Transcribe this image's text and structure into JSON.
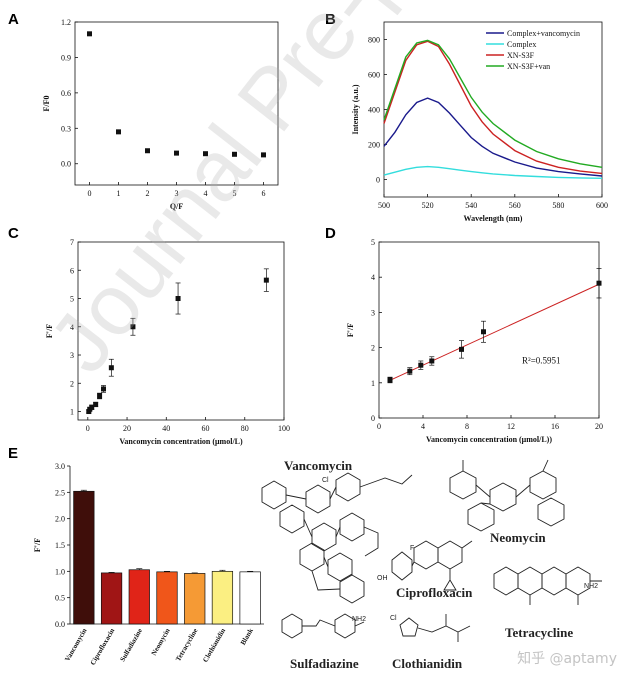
{
  "panels": {
    "A": {
      "letter": "A"
    },
    "B": {
      "letter": "B"
    },
    "C": {
      "letter": "C"
    },
    "D": {
      "letter": "D"
    },
    "E": {
      "letter": "E"
    }
  },
  "watermark": "Journal Pre-proof",
  "credit": "知乎 @aptamy",
  "structures": {
    "vancomycin": "Vancomycin",
    "neomycin": "Neomycin",
    "ciprofloxacin": "Ciprofloxacin",
    "tetracycline": "Tetracycline",
    "sulfadiazine": "Sulfadiazine",
    "clothianidin": "Clothianidin",
    "atom_cl": "Cl",
    "atom_nh2": "NH2",
    "atom_f": "F",
    "atom_oh": "OH"
  },
  "chart_data": [
    {
      "id": "A",
      "type": "scatter",
      "x": [
        0,
        1,
        2,
        3,
        4,
        5,
        6
      ],
      "y": [
        1.1,
        0.27,
        0.11,
        0.09,
        0.085,
        0.08,
        0.075
      ],
      "xlabel": "Q/F",
      "ylabel": "F/F0",
      "xlim": [
        -0.5,
        6.5
      ],
      "ylim": [
        -0.18,
        1.2
      ],
      "xticks": [
        "0",
        "1",
        "2",
        "3",
        "4",
        "5",
        "6"
      ],
      "yticks": [
        "0.0",
        "0.3",
        "0.6",
        "0.9",
        "1.2"
      ]
    },
    {
      "id": "B",
      "type": "line",
      "xlabel": "Wavelength (nm)",
      "ylabel": "Intensity (a.u.)",
      "xlim": [
        500,
        600
      ],
      "ylim": [
        -100,
        900
      ],
      "xticks": [
        "500",
        "520",
        "540",
        "560",
        "580",
        "600"
      ],
      "yticks": [
        "0",
        "200",
        "400",
        "600",
        "800"
      ],
      "x": [
        500,
        505,
        510,
        515,
        520,
        525,
        530,
        535,
        540,
        545,
        550,
        560,
        570,
        580,
        590,
        600
      ],
      "series": [
        {
          "name": "Complex+vancomycin",
          "color": "#1a1a8c",
          "values": [
            190,
            270,
            370,
            440,
            465,
            440,
            380,
            310,
            240,
            190,
            150,
            100,
            65,
            45,
            32,
            20
          ]
        },
        {
          "name": "Complex",
          "color": "#33dddd",
          "values": [
            25,
            42,
            58,
            70,
            74,
            70,
            62,
            53,
            45,
            38,
            32,
            23,
            17,
            12,
            9,
            7
          ]
        },
        {
          "name": "XN-S3F",
          "color": "#cc2222",
          "values": [
            320,
            500,
            680,
            770,
            790,
            760,
            660,
            540,
            420,
            330,
            260,
            165,
            105,
            70,
            48,
            35
          ]
        },
        {
          "name": "XN-S3F+van",
          "color": "#22aa22",
          "values": [
            340,
            520,
            700,
            780,
            795,
            770,
            690,
            580,
            470,
            385,
            320,
            225,
            160,
            118,
            90,
            70
          ]
        }
      ]
    },
    {
      "id": "C",
      "type": "scatter",
      "x": [
        0.5,
        1,
        2,
        4,
        6,
        8,
        12,
        23,
        46,
        91
      ],
      "y": [
        1.0,
        1.08,
        1.15,
        1.25,
        1.55,
        1.8,
        2.55,
        4.0,
        5.0,
        5.65
      ],
      "err": [
        0.05,
        0.05,
        0.08,
        0.08,
        0.1,
        0.12,
        0.3,
        0.3,
        0.55,
        0.4
      ],
      "xlabel": "Vancomycin concentration (μmol/L)",
      "ylabel": "F'/F",
      "xlim": [
        -5,
        100
      ],
      "ylim": [
        0.7,
        7
      ],
      "xticks": [
        "0",
        "20",
        "40",
        "60",
        "80",
        "100"
      ],
      "yticks": [
        "1",
        "2",
        "3",
        "4",
        "5",
        "6",
        "7"
      ]
    },
    {
      "id": "D",
      "type": "scatter",
      "x": [
        1,
        2.8,
        3.8,
        4.8,
        7.5,
        9.5,
        20
      ],
      "y": [
        1.08,
        1.33,
        1.5,
        1.62,
        1.95,
        2.45,
        3.83
      ],
      "err": [
        0.08,
        0.1,
        0.12,
        0.12,
        0.25,
        0.3,
        0.42
      ],
      "fit": {
        "x": [
          1,
          20
        ],
        "y": [
          1.07,
          3.8
        ]
      },
      "annotation": "R²=0.5951",
      "xlabel": "Vancomycin concentration (μmol/L))",
      "ylabel": "F'/F",
      "xlim": [
        0,
        20
      ],
      "ylim": [
        0,
        5
      ],
      "xticks": [
        "0",
        "4",
        "8",
        "12",
        "16",
        "20"
      ],
      "yticks": [
        "0",
        "1",
        "2",
        "3",
        "4",
        "5"
      ]
    },
    {
      "id": "E",
      "type": "bar",
      "categories": [
        "Vancomycin",
        "Ciprofloxacin",
        "Sulfadiazine",
        "Neomycin",
        "Tetracycline",
        "Clothianidin",
        "Blank"
      ],
      "values": [
        2.52,
        0.97,
        1.03,
        0.99,
        0.96,
        1.0,
        0.99
      ],
      "err": [
        0.02,
        0.01,
        0.02,
        0.01,
        0.01,
        0.02,
        0.01
      ],
      "colors": [
        "#3f0e0a",
        "#a01515",
        "#e02418",
        "#f0561a",
        "#f59a35",
        "#fbef82",
        "#ffffff"
      ],
      "ylabel": "F'/F",
      "ylim": [
        0,
        3.0
      ],
      "yticks": [
        "0.0",
        "0.5",
        "1.0",
        "1.5",
        "2.0",
        "2.5",
        "3.0"
      ]
    }
  ]
}
